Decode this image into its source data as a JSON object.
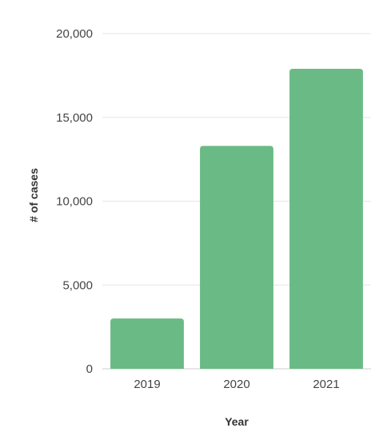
{
  "chart_data": {
    "type": "bar",
    "categories": [
      "2019",
      "2020",
      "2021"
    ],
    "values": [
      3000,
      13300,
      17900
    ],
    "xlabel": "Year",
    "ylabel": "# of cases",
    "ylim": [
      0,
      20000
    ],
    "yticks": [
      0,
      5000,
      10000,
      15000,
      20000
    ],
    "ytick_labels": [
      "0",
      "5,000",
      "10,000",
      "15,000",
      "20,000"
    ],
    "grid": true,
    "legend": "none",
    "bar_color": "#6aba85"
  }
}
